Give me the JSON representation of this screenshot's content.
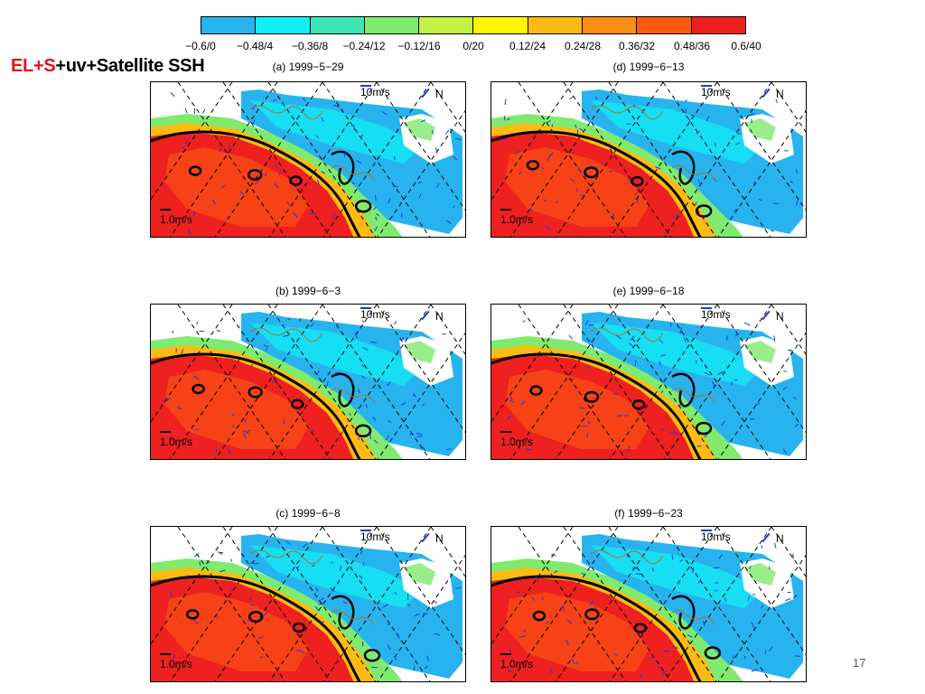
{
  "colorbar": {
    "colors": [
      "#27b4ee",
      "#0ff0f5",
      "#3ee5b4",
      "#7fea6e",
      "#c3f145",
      "#fff700",
      "#fbbb14",
      "#fb8c14",
      "#fc5a10",
      "#ee2020"
    ],
    "labels": [
      "−0.6/0",
      "−0.48/4",
      "−0.36/8",
      "−0.24/12",
      "−0.12/16",
      "0/20",
      "0.12/24",
      "0.24/28",
      "0.36/32",
      "0.48/36",
      "0.6/40"
    ]
  },
  "slide": {
    "title_red": "EL+S",
    "title_black": "+uv+Satellite SSH",
    "page_number": "17"
  },
  "panels": [
    {
      "title": "(a) 1999−5−29",
      "scale_top": "10m/s",
      "north": "N",
      "scale_bottom": "1.0m/s"
    },
    {
      "title": "(d) 1999−6−13",
      "scale_top": "10m/s",
      "north": "N",
      "scale_bottom": "1.0m/s"
    },
    {
      "title": "(b) 1999−6−3",
      "scale_top": "10m/s",
      "north": "N",
      "scale_bottom": "1.0m/s"
    },
    {
      "title": "(e) 1999−6−18",
      "scale_top": "10m/s",
      "north": "N",
      "scale_bottom": "1.0m/s"
    },
    {
      "title": "(c) 1999−6−8",
      "scale_top": "10m/s",
      "north": "N",
      "scale_bottom": "1.0m/s"
    },
    {
      "title": "(f) 1999−6−23",
      "scale_top": "10m/s",
      "north": "N",
      "scale_bottom": "1.0m/s"
    }
  ]
}
